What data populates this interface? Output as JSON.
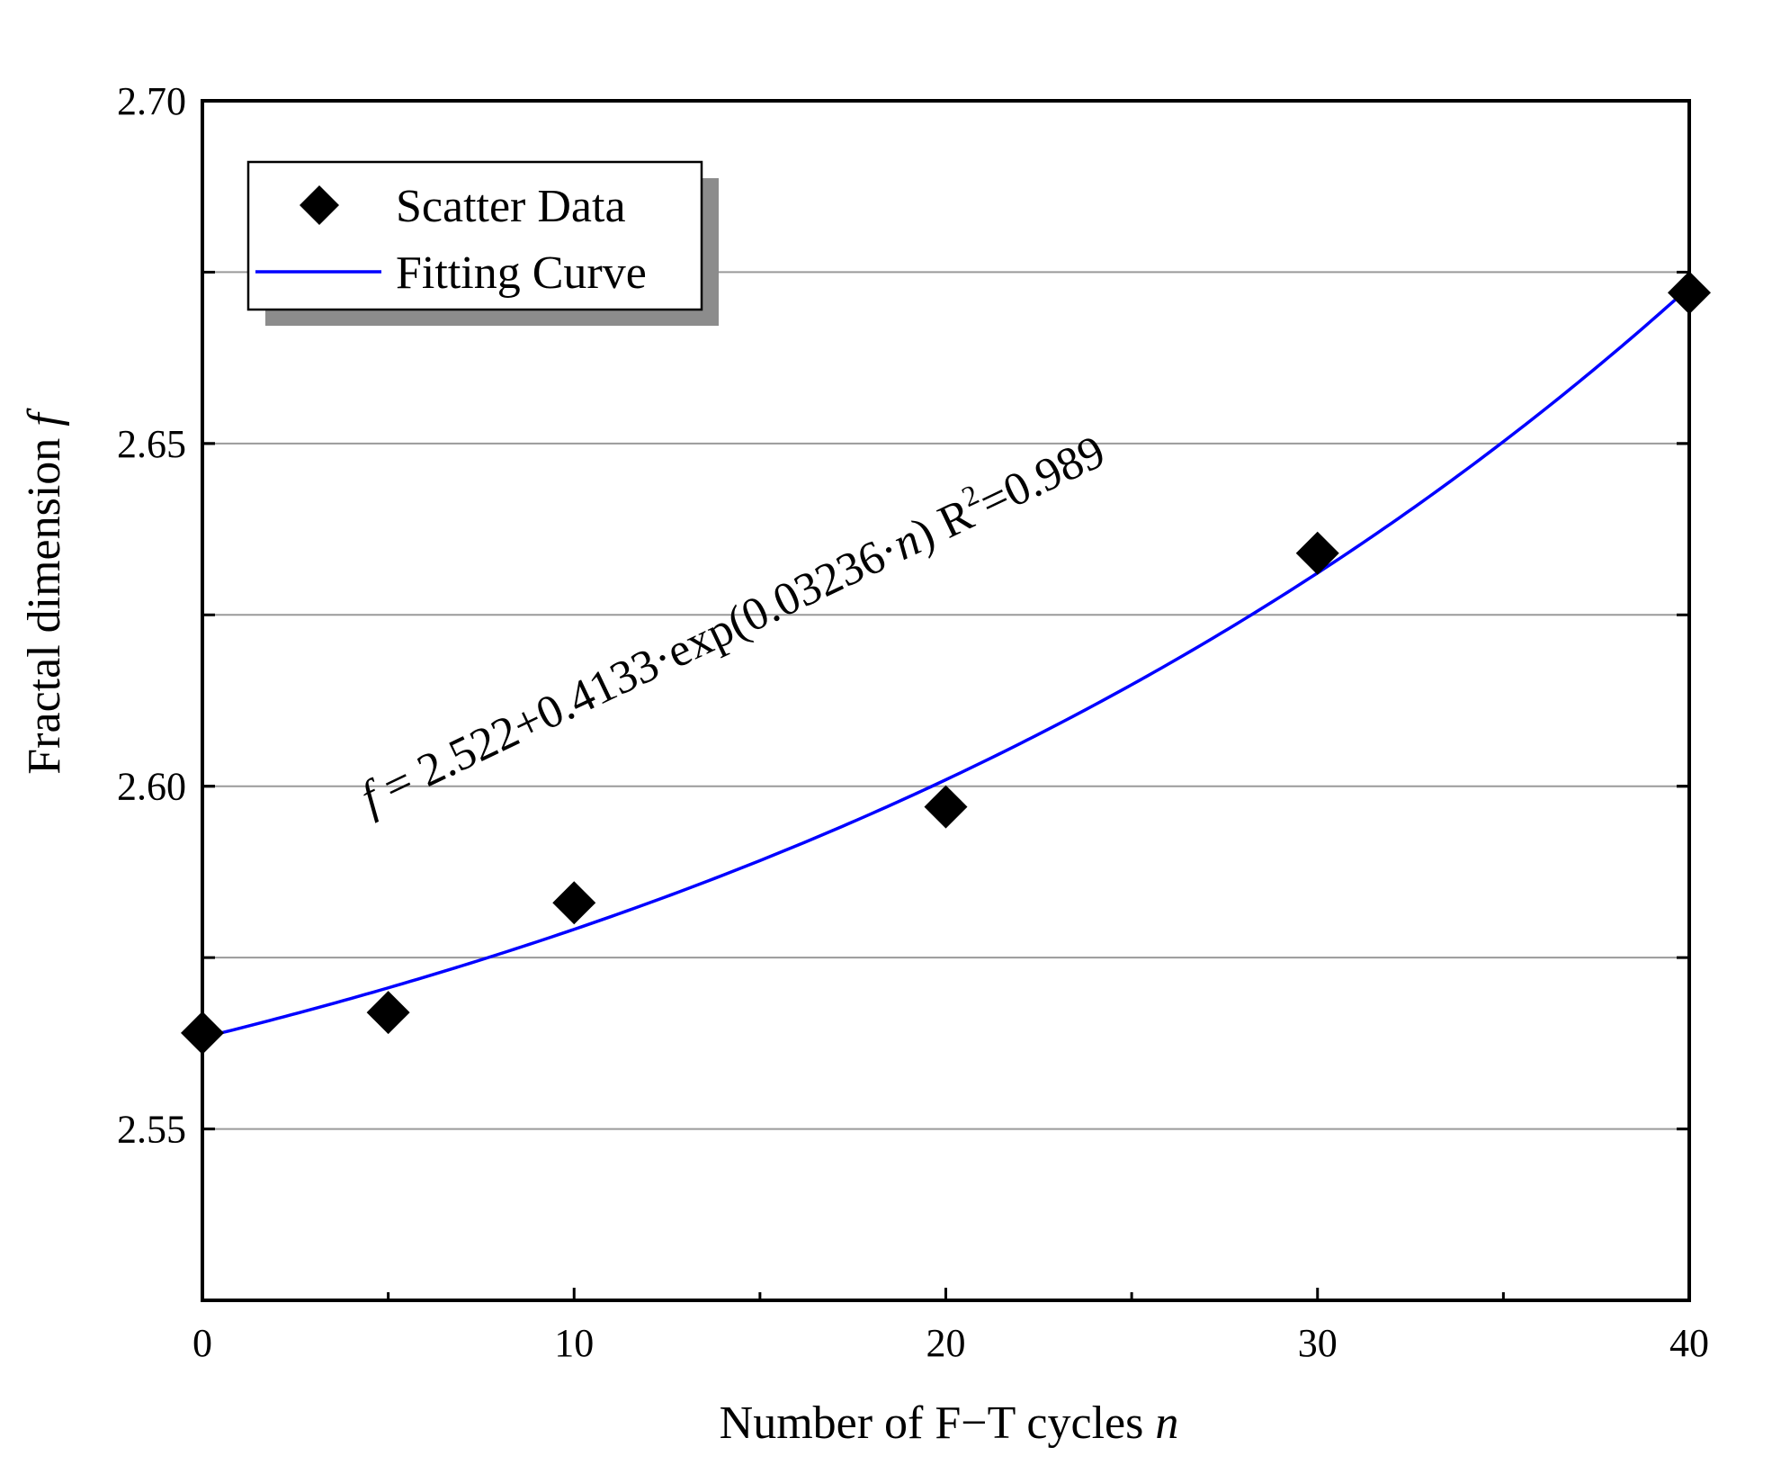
{
  "chart_data": {
    "type": "scatter",
    "title": "",
    "xlabel": "Number of F−T cycles",
    "xlabel_var": "n",
    "ylabel": "Fractal dimension",
    "ylabel_var": "f",
    "xlim": [
      0,
      40
    ],
    "ylim": [
      2.525,
      2.7
    ],
    "x_ticks": [
      0,
      10,
      20,
      30,
      40
    ],
    "x_tick_labels": [
      "0",
      "10",
      "20",
      "30",
      "40"
    ],
    "x_minor_ticks": [
      5,
      15,
      25,
      35
    ],
    "y_ticks": [
      2.55,
      2.6,
      2.65,
      2.7
    ],
    "y_tick_labels": [
      "2.55",
      "2.60",
      "2.65",
      "2.70"
    ],
    "y_gridlines": [
      2.55,
      2.575,
      2.6,
      2.625,
      2.65,
      2.675
    ],
    "grid": true,
    "legend_position": "top-left",
    "series": [
      {
        "name": "Scatter Data",
        "kind": "scatter",
        "marker": "diamond",
        "color": "#000000",
        "x": [
          0,
          5,
          10,
          20,
          30,
          40
        ],
        "y": [
          2.564,
          2.567,
          2.583,
          2.597,
          2.634,
          2.672
        ]
      },
      {
        "name": "Fitting Curve",
        "kind": "line",
        "color": "#0000ff",
        "model": {
          "a": 2.522,
          "b": 0.4133,
          "c": 0.03236,
          "x_scale": 10
        },
        "x_range": [
          0,
          40
        ]
      }
    ],
    "annotation": {
      "var": "f",
      "equation_main": " = 2.522+0.4133·exp(0.03236·",
      "equation_var": "n",
      "equation_close": ") R",
      "r_sup": "2",
      "r_value": "=0.989"
    }
  }
}
